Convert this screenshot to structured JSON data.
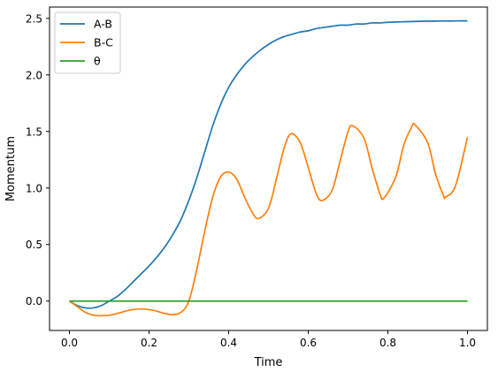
{
  "chart_data": {
    "type": "line",
    "title": "",
    "xlabel": "Time",
    "ylabel": "Momentum",
    "xlim": [
      -0.05,
      1.05
    ],
    "ylim": [
      -0.26,
      2.6
    ],
    "xticks": [
      0.0,
      0.2,
      0.4,
      0.6,
      0.8,
      1.0
    ],
    "xtick_labels": [
      "0.0",
      "0.2",
      "0.4",
      "0.6",
      "0.8",
      "1.0"
    ],
    "yticks": [
      0.0,
      0.5,
      1.0,
      1.5,
      2.0,
      2.5
    ],
    "ytick_labels": [
      "0.0",
      "0.5",
      "1.0",
      "1.5",
      "2.0",
      "2.5"
    ],
    "grid": false,
    "legend_position": "top-left",
    "series": [
      {
        "name": "A-B",
        "color": "#1f77b4",
        "x": [
          0.0,
          0.02,
          0.04,
          0.06,
          0.08,
          0.1,
          0.12,
          0.14,
          0.16,
          0.18,
          0.2,
          0.22,
          0.24,
          0.26,
          0.28,
          0.3,
          0.32,
          0.34,
          0.36,
          0.38,
          0.4,
          0.42,
          0.44,
          0.46,
          0.48,
          0.5,
          0.52,
          0.54,
          0.56,
          0.58,
          0.6,
          0.62,
          0.64,
          0.66,
          0.68,
          0.7,
          0.72,
          0.74,
          0.76,
          0.78,
          0.8,
          0.82,
          0.84,
          0.86,
          0.88,
          0.9,
          0.92,
          0.94,
          0.96,
          0.98,
          1.0
        ],
        "y": [
          0.0,
          -0.04,
          -0.06,
          -0.06,
          -0.04,
          0.0,
          0.04,
          0.1,
          0.17,
          0.24,
          0.31,
          0.39,
          0.48,
          0.59,
          0.72,
          0.89,
          1.09,
          1.32,
          1.55,
          1.74,
          1.89,
          2.0,
          2.09,
          2.16,
          2.22,
          2.27,
          2.31,
          2.34,
          2.36,
          2.38,
          2.39,
          2.41,
          2.42,
          2.43,
          2.44,
          2.44,
          2.45,
          2.45,
          2.46,
          2.46,
          2.465,
          2.468,
          2.47,
          2.472,
          2.474,
          2.475,
          2.476,
          2.477,
          2.477,
          2.478,
          2.478
        ]
      },
      {
        "name": "B-C",
        "color": "#ff7f0e",
        "x": [
          0.0,
          0.02,
          0.04,
          0.06,
          0.08,
          0.1,
          0.12,
          0.14,
          0.16,
          0.18,
          0.2,
          0.22,
          0.24,
          0.26,
          0.28,
          0.3,
          0.32,
          0.34,
          0.36,
          0.38,
          0.4,
          0.42,
          0.44,
          0.46,
          0.475,
          0.5,
          0.52,
          0.54,
          0.557,
          0.58,
          0.6,
          0.62,
          0.635,
          0.66,
          0.68,
          0.7,
          0.712,
          0.74,
          0.76,
          0.78,
          0.79,
          0.82,
          0.84,
          0.86,
          0.868,
          0.9,
          0.92,
          0.94,
          0.945,
          0.97,
          1.0
        ],
        "y": [
          0.0,
          -0.05,
          -0.1,
          -0.125,
          -0.13,
          -0.125,
          -0.11,
          -0.09,
          -0.075,
          -0.07,
          -0.075,
          -0.09,
          -0.11,
          -0.12,
          -0.1,
          0.0,
          0.28,
          0.62,
          0.92,
          1.1,
          1.14,
          1.08,
          0.92,
          0.78,
          0.73,
          0.82,
          1.08,
          1.36,
          1.48,
          1.4,
          1.18,
          0.95,
          0.89,
          0.98,
          1.24,
          1.5,
          1.55,
          1.44,
          1.18,
          0.95,
          0.91,
          1.1,
          1.38,
          1.54,
          1.56,
          1.4,
          1.12,
          0.93,
          0.92,
          1.02,
          1.45
        ]
      },
      {
        "name": "θ",
        "color": "#2ca02c",
        "x": [
          0.0,
          1.0
        ],
        "y": [
          0.0,
          0.0
        ]
      }
    ]
  }
}
